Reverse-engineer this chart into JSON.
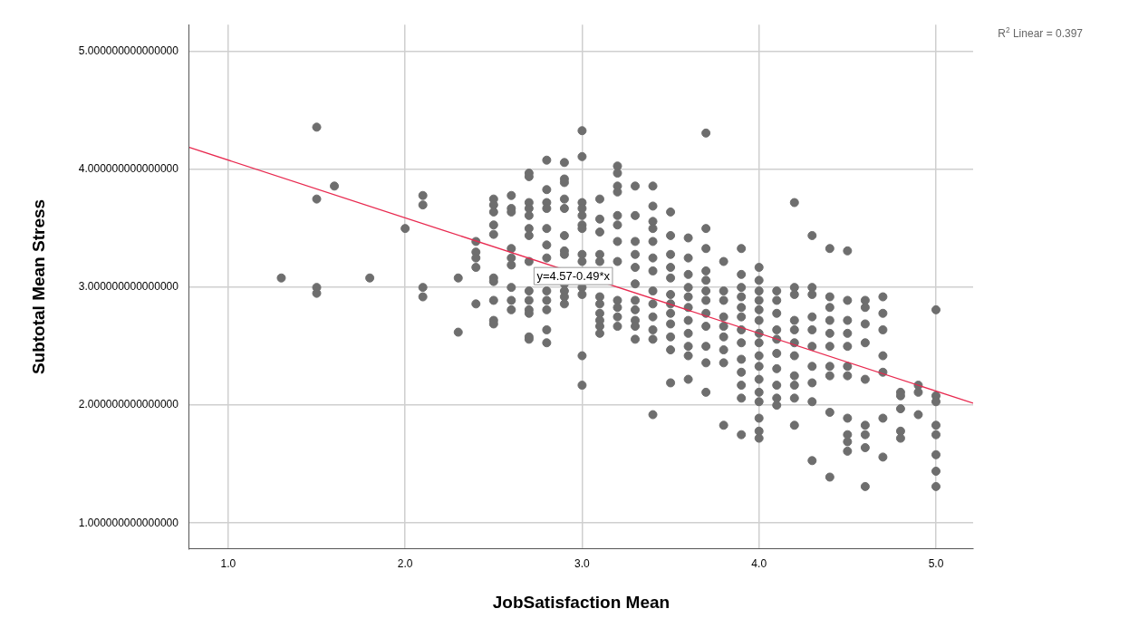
{
  "chart_data": {
    "type": "scatter",
    "xlabel": "JobSatisfaction Mean",
    "ylabel": "Subtotal Mean Stress",
    "xlim": [
      0.78,
      5.21
    ],
    "ylim": [
      0.78,
      5.23
    ],
    "xticks": [
      {
        "value": 1,
        "label": "1.0"
      },
      {
        "value": 2,
        "label": "2.0"
      },
      {
        "value": 3,
        "label": "3.0"
      },
      {
        "value": 4,
        "label": "4.0"
      },
      {
        "value": 5,
        "label": "5.0"
      }
    ],
    "yticks": [
      {
        "value": 1,
        "label": "1.000000000000000"
      },
      {
        "value": 2,
        "label": "2.000000000000000"
      },
      {
        "value": 3,
        "label": "3.000000000000000"
      },
      {
        "value": 4,
        "label": "4.000000000000000"
      },
      {
        "value": 5,
        "label": "5.000000000000000"
      }
    ],
    "grid": true,
    "annotations": [
      "R$^{2}$ Linear = 0.397",
      {
        "text": "y=4.57-0.49*x",
        "x": 2.95,
        "y": 3.1
      }
    ],
    "series": [
      {
        "marker": "circle",
        "color": "#6e6e6e",
        "x": [
          1.3,
          1.5,
          1.5,
          1.5,
          1.5,
          1.6,
          1.8,
          2.0,
          2.1,
          2.1,
          2.1,
          2.1,
          2.3,
          2.3,
          2.4,
          2.4,
          2.4,
          2.4,
          2.4,
          2.5,
          2.5,
          2.5,
          2.5,
          2.5,
          2.5,
          2.5,
          2.5,
          2.5,
          2.5,
          2.6,
          2.6,
          2.6,
          2.6,
          2.6,
          2.6,
          2.6,
          2.6,
          2.6,
          2.7,
          2.7,
          2.7,
          2.7,
          2.7,
          2.7,
          2.7,
          2.7,
          2.7,
          2.7,
          2.7,
          2.7,
          2.7,
          2.7,
          2.8,
          2.8,
          2.8,
          2.8,
          2.8,
          2.8,
          2.8,
          2.8,
          2.8,
          2.8,
          2.8,
          2.8,
          2.9,
          2.9,
          2.9,
          2.9,
          2.9,
          2.9,
          2.9,
          2.9,
          2.9,
          2.9,
          2.9,
          2.9,
          3.0,
          3.0,
          3.0,
          3.0,
          3.0,
          3.0,
          3.0,
          3.0,
          3.0,
          3.0,
          3.0,
          3.0,
          3.0,
          3.1,
          3.1,
          3.1,
          3.1,
          3.1,
          3.1,
          3.1,
          3.1,
          3.1,
          3.1,
          3.1,
          3.2,
          3.2,
          3.2,
          3.2,
          3.2,
          3.2,
          3.2,
          3.2,
          3.2,
          3.2,
          3.2,
          3.2,
          3.3,
          3.3,
          3.3,
          3.3,
          3.3,
          3.3,
          3.3,
          3.3,
          3.3,
          3.3,
          3.3,
          3.4,
          3.4,
          3.4,
          3.4,
          3.4,
          3.4,
          3.4,
          3.4,
          3.4,
          3.4,
          3.4,
          3.4,
          3.4,
          3.5,
          3.5,
          3.5,
          3.5,
          3.5,
          3.5,
          3.5,
          3.5,
          3.5,
          3.5,
          3.5,
          3.5,
          3.6,
          3.6,
          3.6,
          3.6,
          3.6,
          3.6,
          3.6,
          3.6,
          3.6,
          3.6,
          3.6,
          3.7,
          3.7,
          3.7,
          3.7,
          3.7,
          3.7,
          3.7,
          3.7,
          3.7,
          3.7,
          3.7,
          3.7,
          3.8,
          3.8,
          3.8,
          3.8,
          3.8,
          3.8,
          3.8,
          3.8,
          3.8,
          3.9,
          3.9,
          3.9,
          3.9,
          3.9,
          3.9,
          3.9,
          3.9,
          3.9,
          3.9,
          3.9,
          3.9,
          3.9,
          4.0,
          4.0,
          4.0,
          4.0,
          4.0,
          4.0,
          4.0,
          4.0,
          4.0,
          4.0,
          4.0,
          4.0,
          4.0,
          4.0,
          4.0,
          4.0,
          4.1,
          4.1,
          4.1,
          4.1,
          4.1,
          4.1,
          4.1,
          4.1,
          4.1,
          4.1,
          4.2,
          4.2,
          4.2,
          4.2,
          4.2,
          4.2,
          4.2,
          4.2,
          4.2,
          4.2,
          4.2,
          4.3,
          4.3,
          4.3,
          4.3,
          4.3,
          4.3,
          4.3,
          4.3,
          4.3,
          4.3,
          4.4,
          4.4,
          4.4,
          4.4,
          4.4,
          4.4,
          4.4,
          4.4,
          4.4,
          4.4,
          4.5,
          4.5,
          4.5,
          4.5,
          4.5,
          4.5,
          4.5,
          4.5,
          4.5,
          4.5,
          4.5,
          4.6,
          4.6,
          4.6,
          4.6,
          4.6,
          4.6,
          4.6,
          4.6,
          4.6,
          4.7,
          4.7,
          4.7,
          4.7,
          4.7,
          4.7,
          4.7,
          4.8,
          4.8,
          4.8,
          4.8,
          4.8,
          4.9,
          4.9,
          4.9,
          5.0,
          5.0,
          5.0,
          5.0,
          5.0,
          5.0,
          5.0,
          5.0
        ],
        "values": [
          3.08,
          4.36,
          3.75,
          3.0,
          2.95,
          3.86,
          3.08,
          3.5,
          3.78,
          3.7,
          3.0,
          2.92,
          3.08,
          2.62,
          3.39,
          3.3,
          3.25,
          3.17,
          2.86,
          3.75,
          3.7,
          3.64,
          3.53,
          3.45,
          3.08,
          3.05,
          2.89,
          2.72,
          2.69,
          3.78,
          3.67,
          3.64,
          3.33,
          3.25,
          3.19,
          3.0,
          2.89,
          2.81,
          3.97,
          3.94,
          3.72,
          3.67,
          3.61,
          3.5,
          3.44,
          3.22,
          2.97,
          2.89,
          2.81,
          2.78,
          2.58,
          2.56,
          4.08,
          3.83,
          3.72,
          3.67,
          3.5,
          3.36,
          3.25,
          2.97,
          2.89,
          2.81,
          2.64,
          2.53,
          4.06,
          3.92,
          3.89,
          3.75,
          3.67,
          3.44,
          3.31,
          3.28,
          3.03,
          2.97,
          2.92,
          2.86,
          4.33,
          4.11,
          3.72,
          3.67,
          3.61,
          3.53,
          3.5,
          3.28,
          3.22,
          3.0,
          2.94,
          2.42,
          2.17,
          3.75,
          3.58,
          3.47,
          3.28,
          3.22,
          2.92,
          2.86,
          2.78,
          2.72,
          2.67,
          2.61,
          4.03,
          3.97,
          3.86,
          3.81,
          3.61,
          3.53,
          3.39,
          3.22,
          2.89,
          2.83,
          2.75,
          2.67,
          3.86,
          3.61,
          3.39,
          3.28,
          3.17,
          3.03,
          2.89,
          2.81,
          2.72,
          2.67,
          2.56,
          3.86,
          3.69,
          3.56,
          3.5,
          3.39,
          3.25,
          3.14,
          2.97,
          2.86,
          2.75,
          2.64,
          2.56,
          1.92,
          3.64,
          3.44,
          3.28,
          3.17,
          3.08,
          2.94,
          2.86,
          2.78,
          2.69,
          2.58,
          2.47,
          2.19,
          3.42,
          3.25,
          3.11,
          3.0,
          2.92,
          2.83,
          2.72,
          2.61,
          2.5,
          2.42,
          2.22,
          4.31,
          3.5,
          3.33,
          3.14,
          3.06,
          2.97,
          2.89,
          2.78,
          2.67,
          2.5,
          2.36,
          2.11,
          3.22,
          2.97,
          2.89,
          2.75,
          2.67,
          2.58,
          2.47,
          2.36,
          1.83,
          3.33,
          3.11,
          3.0,
          2.92,
          2.83,
          2.75,
          2.64,
          2.53,
          2.39,
          2.28,
          2.17,
          2.06,
          1.75,
          3.17,
          3.06,
          2.97,
          2.89,
          2.81,
          2.72,
          2.61,
          2.53,
          2.42,
          2.33,
          2.22,
          2.11,
          2.03,
          1.89,
          1.78,
          1.72,
          2.97,
          2.89,
          2.78,
          2.64,
          2.56,
          2.44,
          2.31,
          2.17,
          2.06,
          2.0,
          3.72,
          3.0,
          2.94,
          2.72,
          2.64,
          2.53,
          2.42,
          2.25,
          2.17,
          2.06,
          1.83,
          3.44,
          3.0,
          2.94,
          2.75,
          2.64,
          2.5,
          2.33,
          2.19,
          2.03,
          1.53,
          3.33,
          2.92,
          2.83,
          2.72,
          2.61,
          2.5,
          2.33,
          2.25,
          1.94,
          1.39,
          3.31,
          2.89,
          2.72,
          2.61,
          2.5,
          2.33,
          2.25,
          1.89,
          1.75,
          1.69,
          1.61,
          2.89,
          2.83,
          2.69,
          2.53,
          2.22,
          1.83,
          1.75,
          1.64,
          1.31,
          2.92,
          2.78,
          2.64,
          2.42,
          2.28,
          1.89,
          1.56,
          2.11,
          2.08,
          1.97,
          1.78,
          1.72,
          2.17,
          2.11,
          1.92,
          2.81,
          2.08,
          2.03,
          1.83,
          1.75,
          1.58,
          1.44,
          1.31
        ]
      },
      {
        "type": "line",
        "marker": "none",
        "color": "#e8294f",
        "x": [
          0.78,
          5.21
        ],
        "values": [
          4.188,
          2.017
        ]
      }
    ]
  }
}
